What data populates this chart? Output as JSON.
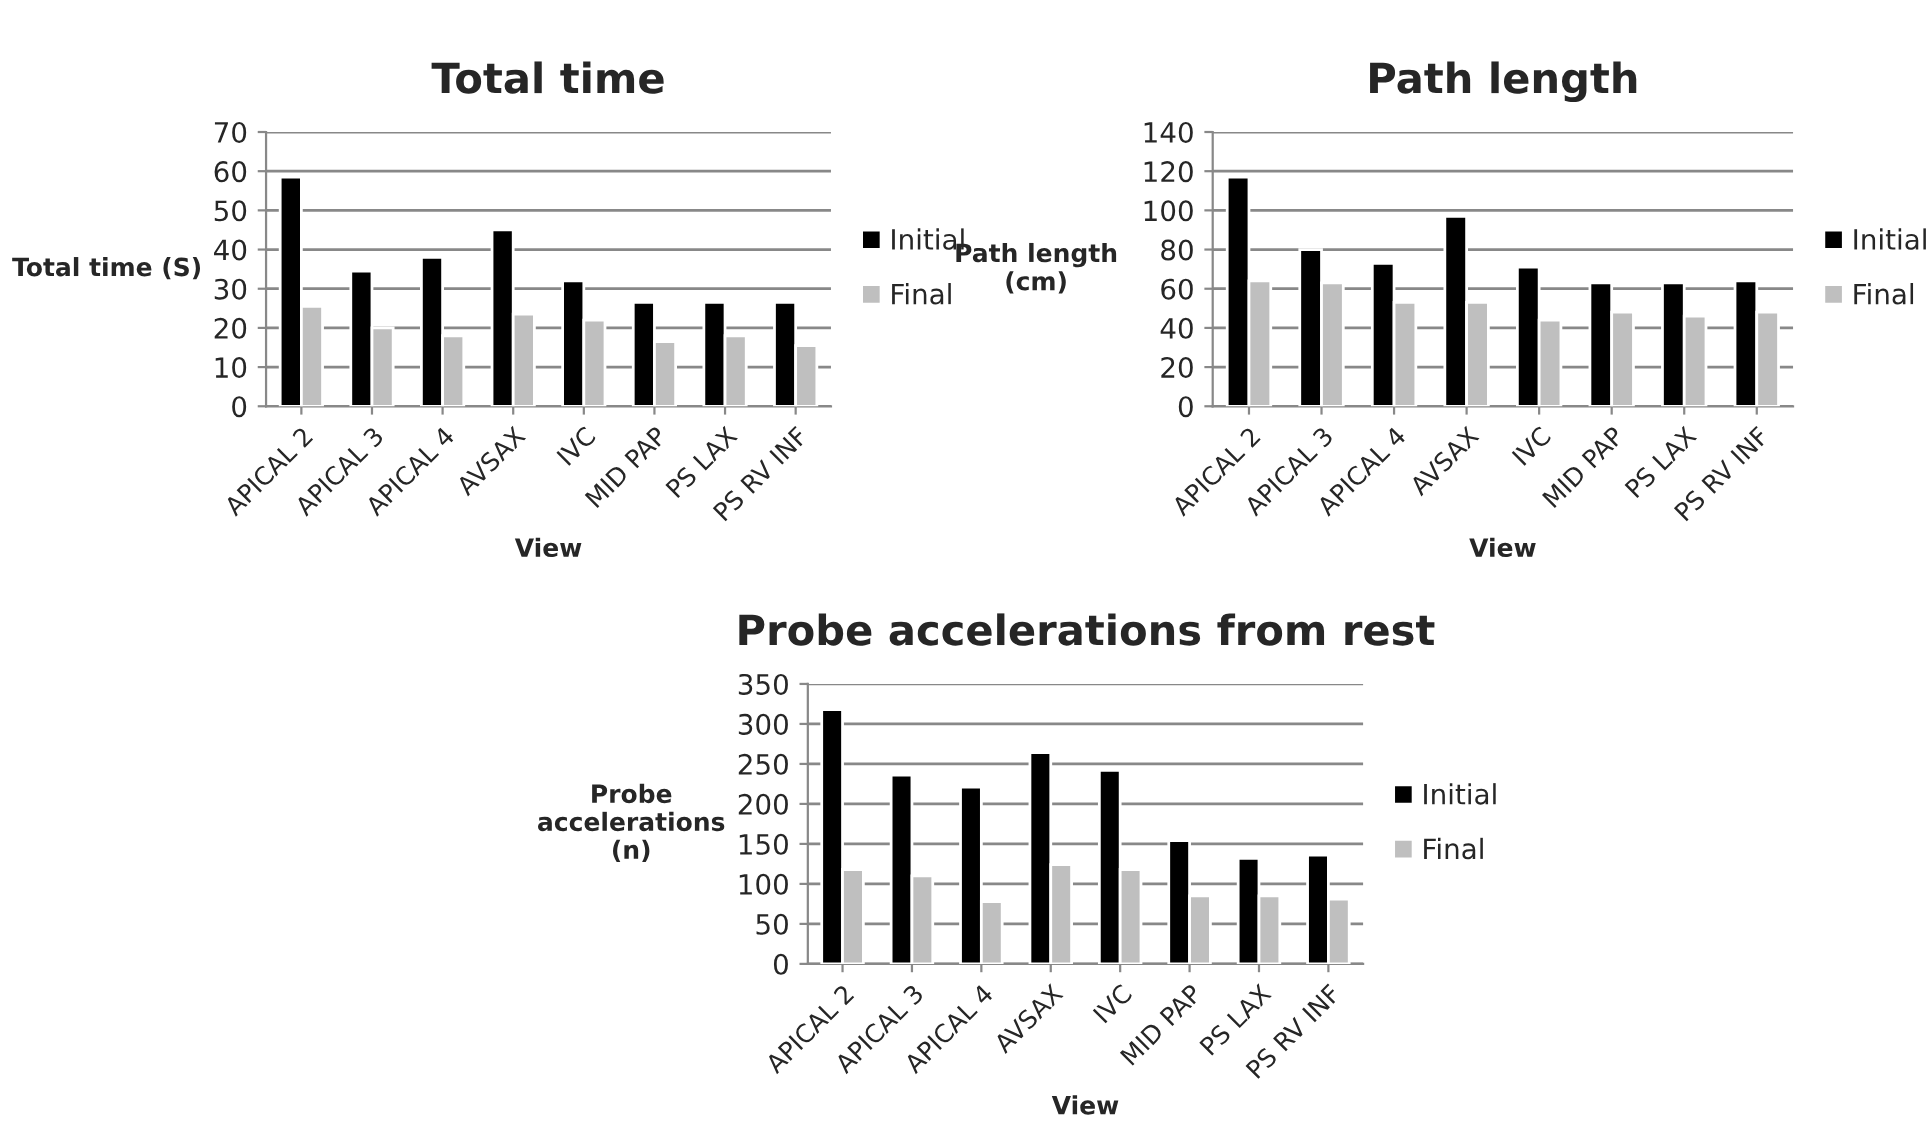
{
  "chart_data": [
    {
      "type": "bar",
      "title": "Total time",
      "xlabel": "View",
      "ylabel": "Total time (S)",
      "categories": [
        "APICAL 2",
        "APICAL 3",
        "APICAL 4",
        "AVSAX",
        "IVC",
        "MID PAP",
        "PS LAX",
        "PS RV INF"
      ],
      "series": [
        {
          "name": "Initial",
          "color": "#000000",
          "values": [
            58.5,
            34.5,
            38,
            45,
            32,
            26.5,
            26.5,
            26.5
          ]
        },
        {
          "name": "Final",
          "color": "#bfbfbf",
          "values": [
            25.5,
            20,
            18,
            23.5,
            22,
            16.5,
            18,
            15.5
          ]
        }
      ],
      "ylim": [
        0,
        70
      ],
      "yticks": [
        0,
        10,
        20,
        30,
        40,
        50,
        60,
        70
      ],
      "grid": "y",
      "legend": "right"
    },
    {
      "type": "bar",
      "title": "Path length",
      "xlabel": "View",
      "ylabel": "Path length\n(cm)",
      "categories": [
        "APICAL 2",
        "APICAL 3",
        "APICAL 4",
        "AVSAX",
        "IVC",
        "MID PAP",
        "PS LAX",
        "PS RV INF"
      ],
      "series": [
        {
          "name": "Initial",
          "color": "#000000",
          "values": [
            117,
            80,
            73,
            97,
            71,
            63,
            63,
            64
          ]
        },
        {
          "name": "Final",
          "color": "#bfbfbf",
          "values": [
            64,
            63,
            53,
            53,
            44,
            48,
            46,
            48
          ]
        }
      ],
      "ylim": [
        0,
        140
      ],
      "yticks": [
        0,
        20,
        40,
        60,
        80,
        100,
        120,
        140
      ],
      "grid": "y",
      "legend": "right"
    },
    {
      "type": "bar",
      "title": "Probe accelerations from rest",
      "xlabel": "View",
      "ylabel": "Probe\naccelerations\n(n)",
      "categories": [
        "APICAL 2",
        "APICAL 3",
        "APICAL 4",
        "AVSAX",
        "IVC",
        "MID PAP",
        "PS LAX",
        "PS RV INF"
      ],
      "series": [
        {
          "name": "Initial",
          "color": "#000000",
          "values": [
            318,
            236,
            221,
            264,
            242,
            154,
            132,
            136
          ]
        },
        {
          "name": "Final",
          "color": "#bfbfbf",
          "values": [
            118,
            110,
            78,
            124,
            118,
            85,
            85,
            81
          ]
        }
      ],
      "ylim": [
        0,
        350
      ],
      "yticks": [
        0,
        50,
        100,
        150,
        200,
        250,
        300,
        350
      ],
      "grid": "y",
      "legend": "right"
    }
  ]
}
